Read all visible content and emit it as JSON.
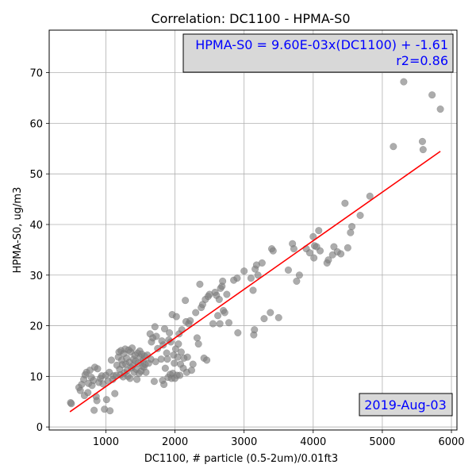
{
  "chart_data": {
    "type": "scatter",
    "title": "Correlation: DC1100 - HPMA-S0",
    "xlabel": "DC1100, # particle (0.5-2um)/0.01ft3",
    "ylabel": "HPMA-S0, ug/m3",
    "xlim": [
      180,
      6080
    ],
    "ylim": [
      -0.6,
      78.4
    ],
    "xticks": [
      1000,
      2000,
      3000,
      4000,
      5000,
      6000
    ],
    "yticks": [
      0,
      10,
      20,
      30,
      40,
      50,
      60,
      70
    ],
    "grid": true,
    "point_color": "#808080",
    "fit_color": "#ff0000",
    "annotation_color": "#0000ff",
    "annotations": {
      "equation_line1": "HPMA-S0 = 9.60E-03x(DC1100) + -1.61",
      "equation_line2": "r2=0.86",
      "date": "2019-Aug-03"
    },
    "fit_line": {
      "slope": 0.0096,
      "intercept": -1.61,
      "x_range": [
        480,
        5840
      ]
    },
    "points": [
      [
        490,
        4.8
      ],
      [
        500,
        4.6
      ],
      [
        610,
        7.8
      ],
      [
        630,
        7.2
      ],
      [
        650,
        8.4
      ],
      [
        680,
        9.4
      ],
      [
        690,
        6.2
      ],
      [
        700,
        10.3
      ],
      [
        720,
        10.8
      ],
      [
        740,
        6.8
      ],
      [
        750,
        8.6
      ],
      [
        770,
        11.2
      ],
      [
        790,
        9.8
      ],
      [
        800,
        8.2
      ],
      [
        820,
        9.2
      ],
      [
        830,
        3.3
      ],
      [
        840,
        11.8
      ],
      [
        860,
        6.0
      ],
      [
        870,
        5.2
      ],
      [
        880,
        11.5
      ],
      [
        900,
        8.8
      ],
      [
        920,
        9.6
      ],
      [
        940,
        10.1
      ],
      [
        960,
        8.5
      ],
      [
        980,
        3.5
      ],
      [
        1000,
        10.2
      ],
      [
        1010,
        5.4
      ],
      [
        1030,
        9.1
      ],
      [
        1050,
        10.8
      ],
      [
        1060,
        3.2
      ],
      [
        1080,
        13.2
      ],
      [
        1100,
        9.4
      ],
      [
        1110,
        10.1
      ],
      [
        1130,
        6.6
      ],
      [
        1150,
        10.2
      ],
      [
        1160,
        12.2
      ],
      [
        1180,
        13.8
      ],
      [
        1190,
        14.8
      ],
      [
        1200,
        11.4
      ],
      [
        1210,
        10.3
      ],
      [
        1220,
        15.1
      ],
      [
        1230,
        13.2
      ],
      [
        1240,
        12.3
      ],
      [
        1250,
        9.9
      ],
      [
        1260,
        14.5
      ],
      [
        1270,
        10.7
      ],
      [
        1280,
        15.4
      ],
      [
        1290,
        12.4
      ],
      [
        1300,
        13.6
      ],
      [
        1310,
        11.2
      ],
      [
        1320,
        10.0
      ],
      [
        1330,
        15.2
      ],
      [
        1340,
        12.8
      ],
      [
        1350,
        9.6
      ],
      [
        1360,
        14.8
      ],
      [
        1370,
        11.7
      ],
      [
        1380,
        15.6
      ],
      [
        1390,
        12.1
      ],
      [
        1400,
        13.4
      ],
      [
        1410,
        10.8
      ],
      [
        1420,
        14.2
      ],
      [
        1430,
        13.0
      ],
      [
        1440,
        11.4
      ],
      [
        1450,
        9.4
      ],
      [
        1460,
        14.6
      ],
      [
        1470,
        12.6
      ],
      [
        1480,
        10.6
      ],
      [
        1490,
        15.0
      ],
      [
        1500,
        13.8
      ],
      [
        1510,
        11.0
      ],
      [
        1520,
        14.4
      ],
      [
        1530,
        12.0
      ],
      [
        1540,
        13.2
      ],
      [
        1550,
        11.8
      ],
      [
        1560,
        14.0
      ],
      [
        1570,
        12.4
      ],
      [
        1580,
        10.8
      ],
      [
        1600,
        14.2
      ],
      [
        1620,
        12.6
      ],
      [
        1640,
        18.4
      ],
      [
        1650,
        13.4
      ],
      [
        1660,
        16.8
      ],
      [
        1680,
        17.6
      ],
      [
        1700,
        9.0
      ],
      [
        1710,
        19.8
      ],
      [
        1720,
        12.9
      ],
      [
        1730,
        17.9
      ],
      [
        1750,
        15.5
      ],
      [
        1800,
        13.4
      ],
      [
        1810,
        17.0
      ],
      [
        1820,
        9.2
      ],
      [
        1830,
        16.2
      ],
      [
        1840,
        8.4
      ],
      [
        1850,
        19.4
      ],
      [
        1860,
        11.6
      ],
      [
        1880,
        14.6
      ],
      [
        1890,
        13.4
      ],
      [
        1900,
        9.8
      ],
      [
        1910,
        17.2
      ],
      [
        1920,
        18.6
      ],
      [
        1930,
        10.4
      ],
      [
        1940,
        16.8
      ],
      [
        1950,
        9.6
      ],
      [
        1960,
        22.2
      ],
      [
        1970,
        10.6
      ],
      [
        1980,
        14.2
      ],
      [
        1990,
        12.6
      ],
      [
        2000,
        9.6
      ],
      [
        2010,
        15.4
      ],
      [
        2020,
        21.8
      ],
      [
        2030,
        10.2
      ],
      [
        2040,
        13.8
      ],
      [
        2050,
        16.4
      ],
      [
        2060,
        18.4
      ],
      [
        2070,
        10.2
      ],
      [
        2080,
        12.4
      ],
      [
        2090,
        14.8
      ],
      [
        2100,
        19.2
      ],
      [
        2120,
        11.6
      ],
      [
        2130,
        13.6
      ],
      [
        2150,
        25.0
      ],
      [
        2160,
        20.8
      ],
      [
        2170,
        10.8
      ],
      [
        2180,
        13.8
      ],
      [
        2200,
        20.4
      ],
      [
        2220,
        21.0
      ],
      [
        2240,
        11.2
      ],
      [
        2260,
        12.4
      ],
      [
        2300,
        22.6
      ],
      [
        2320,
        17.6
      ],
      [
        2340,
        16.4
      ],
      [
        2360,
        28.2
      ],
      [
        2380,
        23.6
      ],
      [
        2400,
        24.2
      ],
      [
        2420,
        13.6
      ],
      [
        2440,
        25.2
      ],
      [
        2460,
        13.2
      ],
      [
        2480,
        25.8
      ],
      [
        2500,
        26.2
      ],
      [
        2550,
        20.4
      ],
      [
        2580,
        26.6
      ],
      [
        2600,
        26.0
      ],
      [
        2620,
        22.0
      ],
      [
        2640,
        25.2
      ],
      [
        2650,
        20.4
      ],
      [
        2660,
        27.4
      ],
      [
        2680,
        27.8
      ],
      [
        2690,
        28.8
      ],
      [
        2700,
        23.0
      ],
      [
        2720,
        22.6
      ],
      [
        2750,
        26.2
      ],
      [
        2780,
        20.6
      ],
      [
        2850,
        29.0
      ],
      [
        2900,
        29.4
      ],
      [
        2910,
        18.6
      ],
      [
        3000,
        30.8
      ],
      [
        3100,
        29.4
      ],
      [
        3130,
        27.0
      ],
      [
        3140,
        18.2
      ],
      [
        3150,
        19.2
      ],
      [
        3160,
        31.2
      ],
      [
        3180,
        32.0
      ],
      [
        3200,
        30.0
      ],
      [
        3260,
        32.4
      ],
      [
        3290,
        21.4
      ],
      [
        3380,
        22.6
      ],
      [
        3400,
        35.2
      ],
      [
        3420,
        34.8
      ],
      [
        3500,
        21.6
      ],
      [
        3640,
        31.0
      ],
      [
        3700,
        36.2
      ],
      [
        3720,
        35.2
      ],
      [
        3760,
        28.8
      ],
      [
        3800,
        30.0
      ],
      [
        3900,
        35.2
      ],
      [
        3950,
        34.4
      ],
      [
        4000,
        37.6
      ],
      [
        4010,
        33.4
      ],
      [
        4020,
        35.8
      ],
      [
        4050,
        35.6
      ],
      [
        4080,
        38.8
      ],
      [
        4100,
        34.8
      ],
      [
        4200,
        32.4
      ],
      [
        4220,
        33.0
      ],
      [
        4280,
        34.0
      ],
      [
        4300,
        35.6
      ],
      [
        4350,
        34.6
      ],
      [
        4400,
        34.2
      ],
      [
        4460,
        44.2
      ],
      [
        4500,
        35.4
      ],
      [
        4540,
        38.4
      ],
      [
        4560,
        39.6
      ],
      [
        4680,
        41.8
      ],
      [
        4820,
        45.6
      ],
      [
        5160,
        55.4
      ],
      [
        5310,
        68.2
      ],
      [
        5580,
        56.4
      ],
      [
        5590,
        54.8
      ],
      [
        5720,
        65.6
      ],
      [
        5840,
        62.8
      ]
    ]
  }
}
